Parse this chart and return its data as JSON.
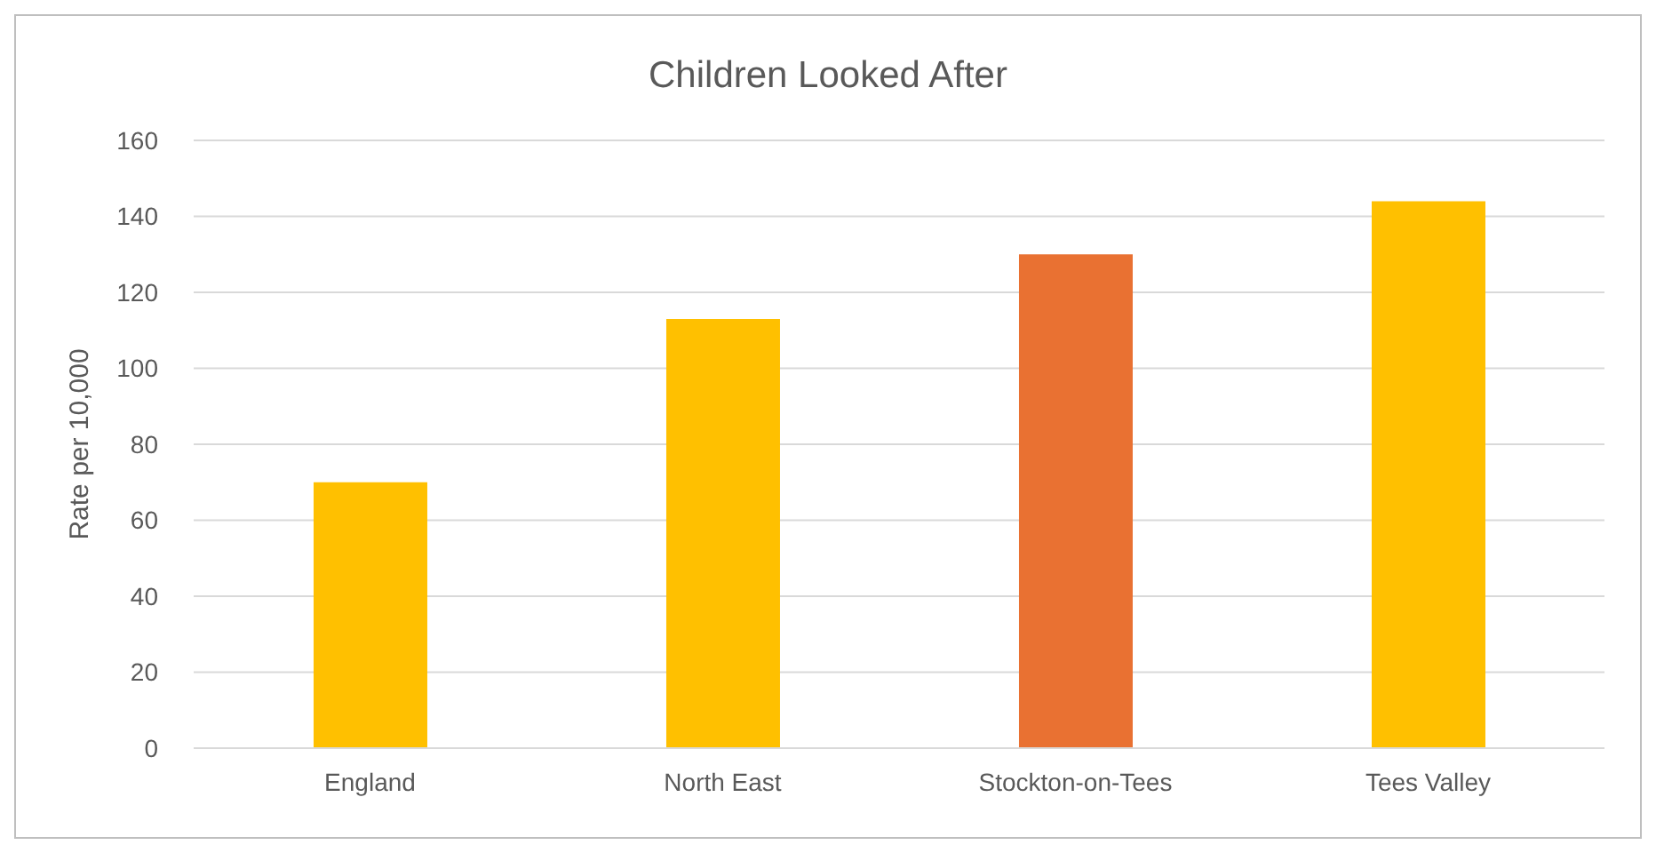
{
  "chart_data": {
    "type": "bar",
    "title": "Children Looked After",
    "ylabel": "Rate per 10,000",
    "categories": [
      "England",
      "North East",
      "Stockton-on-Tees",
      "Tees Valley"
    ],
    "values": [
      70,
      113,
      130,
      144
    ],
    "colors": [
      "#ffc000",
      "#ffc000",
      "#e97132",
      "#ffc000"
    ],
    "ylim": [
      0,
      160
    ],
    "yticks": [
      0,
      20,
      40,
      60,
      80,
      100,
      120,
      140,
      160
    ],
    "grid": "y"
  }
}
